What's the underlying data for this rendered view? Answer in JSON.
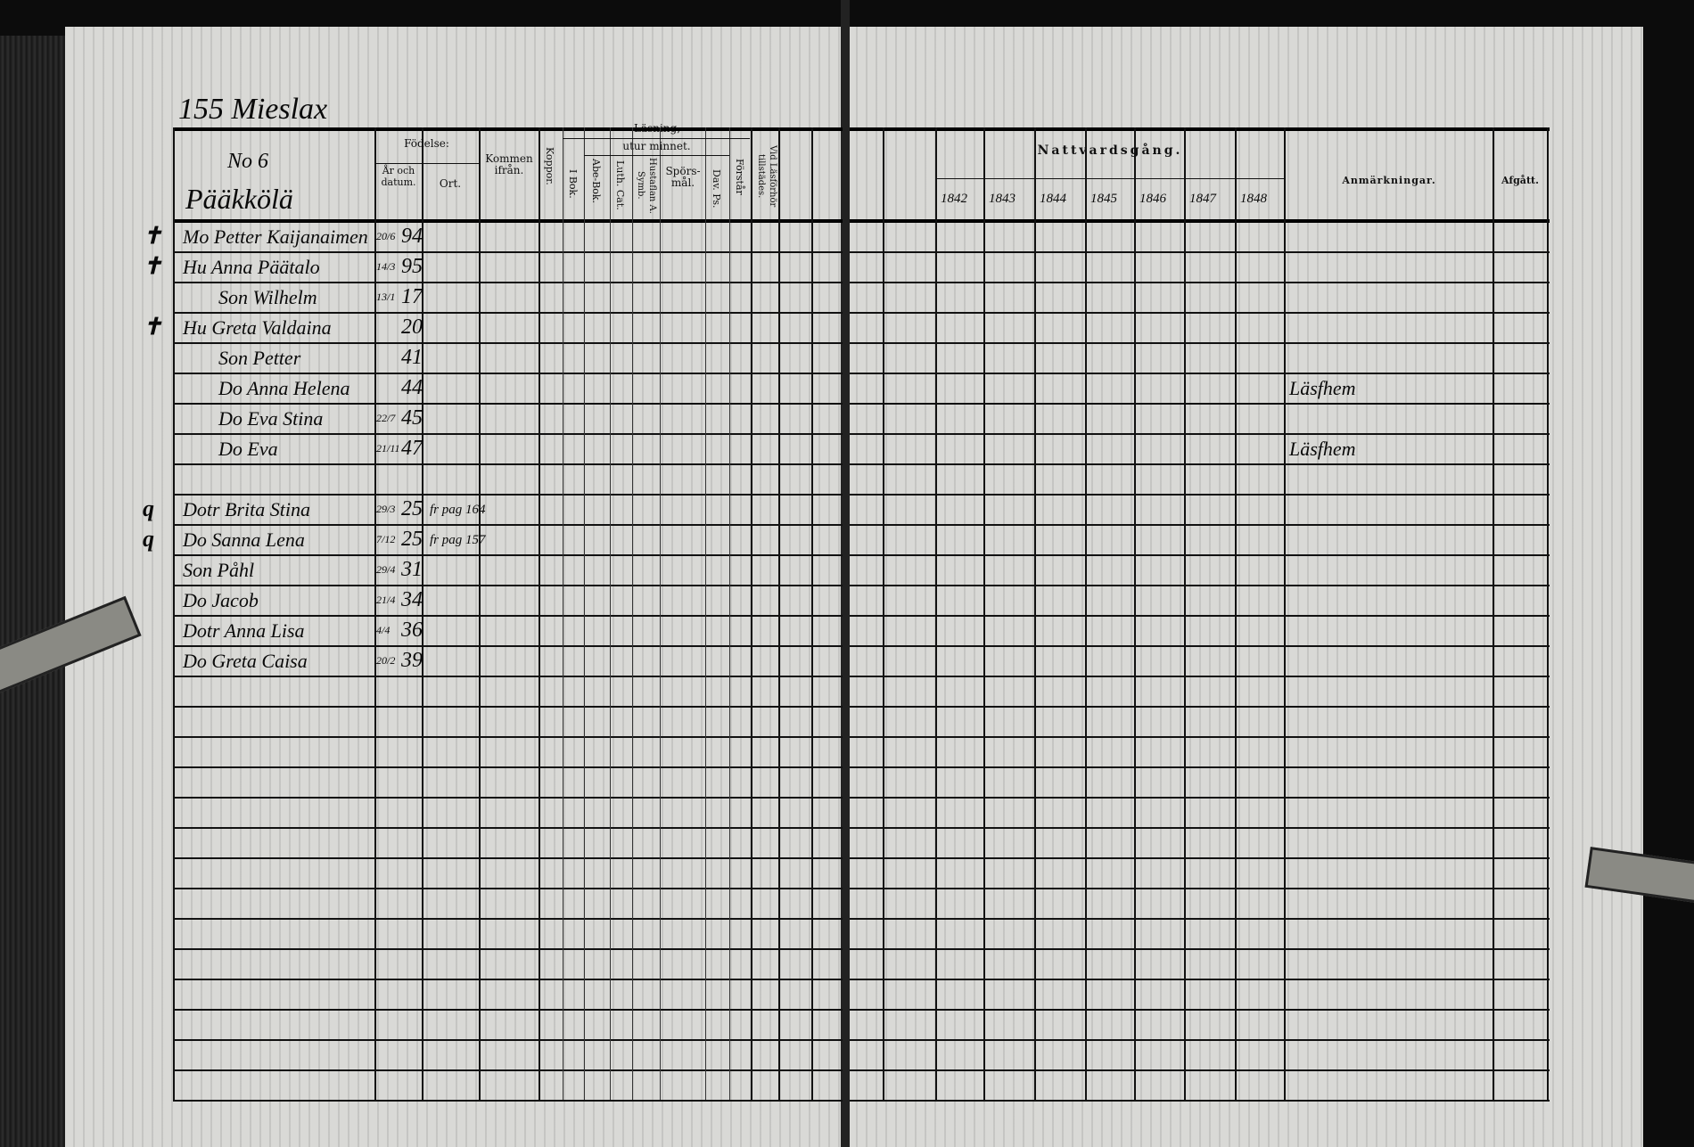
{
  "left_page": {
    "title": "155 Mieslax",
    "household_no": "No 6",
    "farm_name": "Pääkkölä",
    "headers": {
      "name": "",
      "fodelse": "Födelse:",
      "ar_och_datum": "År och datum.",
      "ort": "Ort.",
      "kommen_ifran": "Kommen ifrån.",
      "koppor": "Koppor.",
      "lasning": "Läsning,",
      "utur_minnet": "utur minnet.",
      "i_bok": "I Bok.",
      "abe_bok": "Abe-Bok.",
      "luth_cat": "Luth. Cat.",
      "hustaflan": "Hustaflan A. Symb.",
      "sporsmal": "Spörs-mål.",
      "dav_ps": "Dav. Ps.",
      "forstar": "Förstår",
      "vid_lasforhor": "Vid Läsförhör tillstädes."
    },
    "rows": [
      {
        "margin": "✝",
        "name": "Mo Petter Kaijanaimen",
        "day_month": "20/6",
        "year": "94",
        "from": ""
      },
      {
        "margin": "✝",
        "name": "Hu Anna Päätalo",
        "day_month": "14/3",
        "year": "95",
        "from": ""
      },
      {
        "margin": "",
        "name": "Son Wilhelm",
        "day_month": "13/1",
        "year": "17",
        "from": ""
      },
      {
        "margin": "✝",
        "name": "Hu Greta Valdaina",
        "day_month": "",
        "year": "20",
        "from": ""
      },
      {
        "margin": "",
        "name": "Son Petter",
        "day_month": "",
        "year": "41",
        "from": ""
      },
      {
        "margin": "",
        "name": "Do Anna Helena",
        "day_month": "",
        "year": "44",
        "from": ""
      },
      {
        "margin": "",
        "name": "Do Eva Stina",
        "day_month": "22/7",
        "year": "45",
        "from": ""
      },
      {
        "margin": "",
        "name": "Do Eva",
        "day_month": "21/11",
        "year": "47",
        "from": ""
      },
      {
        "margin": "",
        "name": "",
        "day_month": "",
        "year": "",
        "from": ""
      },
      {
        "margin": "q",
        "name": "Dotr Brita Stina",
        "day_month": "29/3",
        "year": "25",
        "from": "fr pag 164"
      },
      {
        "margin": "q",
        "name": "Do Sanna Lena",
        "day_month": "7/12",
        "year": "25",
        "from": "fr pag 157"
      },
      {
        "margin": "",
        "name": "Son Påhl",
        "day_month": "29/4",
        "year": "31",
        "from": ""
      },
      {
        "margin": "",
        "name": "Do Jacob",
        "day_month": "21/4",
        "year": "34",
        "from": ""
      },
      {
        "margin": "",
        "name": "Dotr Anna Lisa",
        "day_month": "4/4",
        "year": "36",
        "from": ""
      },
      {
        "margin": "",
        "name": "Do Greta Caisa",
        "day_month": "20/2",
        "year": "39",
        "from": ""
      }
    ]
  },
  "right_page": {
    "headers": {
      "nattvardsgang": "Nattvardsgång.",
      "years": [
        "1842",
        "1843",
        "1844",
        "1845",
        "1846",
        "1847",
        "1848"
      ],
      "anmarkningar": "Anmärkningar.",
      "afgatt": "Afgått."
    },
    "remarks": [
      {
        "row": 6,
        "text": "Läsfhem"
      },
      {
        "row": 8,
        "text": "Läsfhem"
      }
    ]
  }
}
